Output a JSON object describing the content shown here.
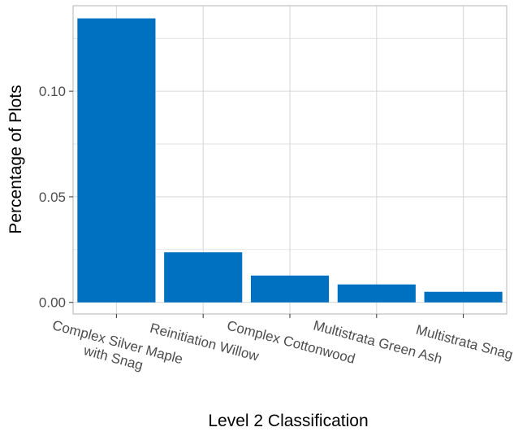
{
  "chart_data": {
    "type": "bar",
    "title": "",
    "xlabel": "Level 2 Classification",
    "ylabel": "Percentage of Plots",
    "categories": [
      [
        "Complex Silver Maple",
        "with Snag"
      ],
      [
        "Reinitiation Willow"
      ],
      [
        "Complex Cottonwood"
      ],
      [
        "Multistrata Green Ash"
      ],
      [
        "Multistrata Snag"
      ]
    ],
    "values": [
      0.1345,
      0.0237,
      0.0127,
      0.0085,
      0.005
    ],
    "ylim": [
      -0.0055,
      0.1405
    ],
    "yticks": [
      0.0,
      0.05,
      0.1
    ],
    "ytick_labels": [
      "0.00",
      "0.05",
      "0.10"
    ],
    "grid": true,
    "legend": "none",
    "colors": {
      "bar": "#0070C0",
      "grid": "#d9d9d9",
      "panel_border": "#b3b3b3"
    }
  }
}
